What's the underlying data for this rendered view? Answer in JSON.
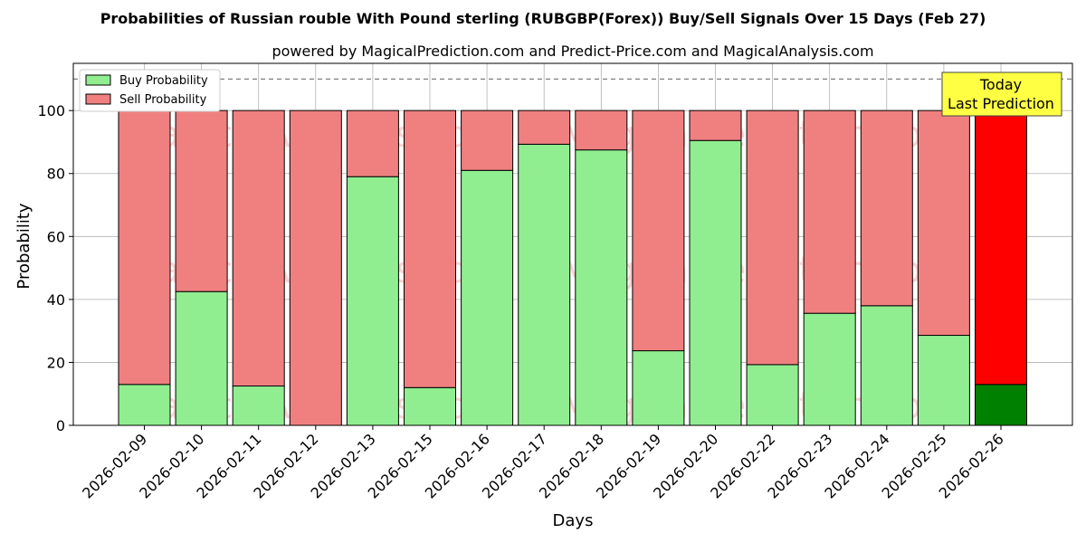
{
  "chart_data": {
    "type": "bar",
    "title": "Probabilities of Russian rouble With Pound sterling (RUBGBP(Forex)) Buy/Sell Signals Over 15 Days (Feb 27)",
    "subtitle": "powered by MagicalPrediction.com and Predict-Price.com and MagicalAnalysis.com",
    "xlabel": "Days",
    "ylabel": "Probability",
    "ylim": [
      0,
      115
    ],
    "yticks": [
      0,
      20,
      40,
      60,
      80,
      100
    ],
    "reference_line": 110,
    "stacked": true,
    "grid": true,
    "legend_position": "top-left",
    "categories": [
      "2026-02-09",
      "2026-02-10",
      "2026-02-11",
      "2026-02-12",
      "2026-02-13",
      "2026-02-15",
      "2026-02-16",
      "2026-02-17",
      "2026-02-18",
      "2026-02-19",
      "2026-02-20",
      "2026-02-22",
      "2026-02-23",
      "2026-02-24",
      "2026-02-25",
      "2026-02-26"
    ],
    "series": [
      {
        "name": "Buy Probability",
        "color": "#90ee90",
        "values": [
          13,
          42.5,
          12.5,
          0,
          79,
          12,
          81,
          89.3,
          87.5,
          23.7,
          90.5,
          19.3,
          35.6,
          38,
          28.6,
          13
        ]
      },
      {
        "name": "Sell Probability",
        "color": "#f08080",
        "values": [
          87,
          57.5,
          87.5,
          100,
          21,
          88,
          19,
          10.7,
          12.5,
          76.3,
          9.5,
          80.7,
          64.4,
          62,
          71.4,
          87
        ]
      }
    ],
    "highlight": {
      "index": 15,
      "buy_color": "#008000",
      "sell_color": "#ff0000"
    },
    "annotation": {
      "line1": "Today",
      "line2": "Last Prediction",
      "background": "#ffff44"
    },
    "watermarks": [
      "MagicalAnalysis.com",
      "MagicaPrediction.com"
    ]
  }
}
